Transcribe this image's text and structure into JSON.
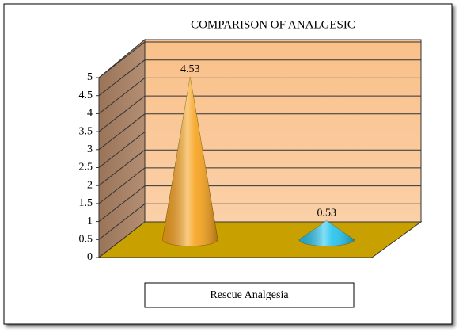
{
  "chart_data": {
    "type": "cone3d",
    "title": "COMPARISON OF ANALGESIC",
    "categories": [
      "Rescue Analgesia"
    ],
    "series": [
      {
        "color": "#f7a11a",
        "values": [
          4.53
        ]
      },
      {
        "color": "#22c3ee",
        "values": [
          0.53
        ]
      }
    ],
    "ylim": [
      0,
      5
    ],
    "yticks": [
      0,
      0.5,
      1,
      1.5,
      2,
      2.5,
      3,
      3.5,
      4,
      4.5,
      5
    ],
    "grid": true
  }
}
